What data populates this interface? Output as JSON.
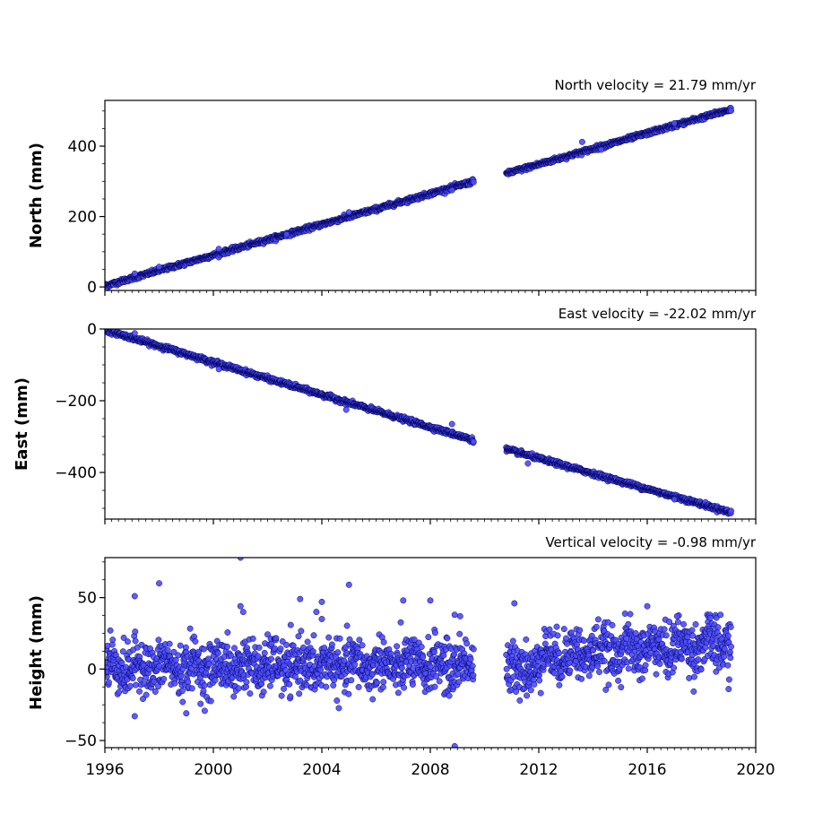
{
  "chart_data": [
    {
      "type": "scatter",
      "title": "North velocity = 21.79 mm/yr",
      "ylabel": "North (mm)",
      "xlim": [
        1996,
        2020
      ],
      "ylim": [
        -10,
        530
      ],
      "yticks": [
        0,
        200,
        400
      ],
      "velocity_mm_per_yr": 21.79,
      "segments": [
        {
          "x_start": 1996.0,
          "x_end": 2009.6,
          "y_start": 3,
          "y_end": 300
        },
        {
          "x_start": 2010.8,
          "x_end": 2019.1,
          "y_start": 322,
          "y_end": 505
        }
      ],
      "noise": 3,
      "outliers": [
        {
          "x": 1997.1,
          "y": 38
        },
        {
          "x": 1998.0,
          "y": 57
        },
        {
          "x": 2000.2,
          "y": 108
        },
        {
          "x": 2002.7,
          "y": 150
        },
        {
          "x": 2005.0,
          "y": 212
        },
        {
          "x": 2008.8,
          "y": 275
        },
        {
          "x": 2013.6,
          "y": 412
        },
        {
          "x": 2014.3,
          "y": 390
        },
        {
          "x": 2017.0,
          "y": 465
        }
      ]
    },
    {
      "type": "scatter",
      "title": "East velocity = -22.02 mm/yr",
      "ylabel": "East (mm)",
      "xlim": [
        1996,
        2020
      ],
      "ylim": [
        -530,
        0
      ],
      "yticks": [
        0,
        -200,
        -400
      ],
      "velocity_mm_per_yr": -22.02,
      "segments": [
        {
          "x_start": 1996.0,
          "x_end": 2009.6,
          "y_start": -2,
          "y_end": -310
        },
        {
          "x_start": 2010.8,
          "x_end": 2019.1,
          "y_start": -335,
          "y_end": -512
        }
      ],
      "noise": 3,
      "outliers": [
        {
          "x": 1997.1,
          "y": -12
        },
        {
          "x": 2000.2,
          "y": -112
        },
        {
          "x": 2004.9,
          "y": -225
        },
        {
          "x": 2008.8,
          "y": -265
        },
        {
          "x": 2011.6,
          "y": -375
        },
        {
          "x": 2017.0,
          "y": -475
        }
      ]
    },
    {
      "type": "scatter",
      "title": "Vertical velocity = -0.98 mm/yr",
      "ylabel": "Height (mm)",
      "xlim": [
        1996,
        2020
      ],
      "ylim": [
        -55,
        78
      ],
      "yticks": [
        -50,
        0,
        50
      ],
      "velocity_mm_per_yr": -0.98,
      "segments": [
        {
          "x_start": 1996.0,
          "x_end": 2009.6,
          "y_start": 1,
          "y_end": 3
        },
        {
          "x_start": 2010.8,
          "x_end": 2012.0,
          "y_start": 0,
          "y_end": 2
        },
        {
          "x_start": 2012.0,
          "x_end": 2019.1,
          "y_start": 9,
          "y_end": 18
        }
      ],
      "noise": 9,
      "outliers": [
        {
          "x": 1996.2,
          "y": 27
        },
        {
          "x": 1997.1,
          "y": 51
        },
        {
          "x": 1997.1,
          "y": -33
        },
        {
          "x": 1998.0,
          "y": 60
        },
        {
          "x": 1999.0,
          "y": -31
        },
        {
          "x": 2001.0,
          "y": 78
        },
        {
          "x": 2001.0,
          "y": 44
        },
        {
          "x": 2001.1,
          "y": 40
        },
        {
          "x": 2003.2,
          "y": 49
        },
        {
          "x": 2003.8,
          "y": 40
        },
        {
          "x": 2004.0,
          "y": 47
        },
        {
          "x": 2004.0,
          "y": 35
        },
        {
          "x": 2005.0,
          "y": 59
        },
        {
          "x": 2007.0,
          "y": 48
        },
        {
          "x": 2008.0,
          "y": 48
        },
        {
          "x": 2008.9,
          "y": 38
        },
        {
          "x": 2009.1,
          "y": 37
        },
        {
          "x": 2008.9,
          "y": -54
        },
        {
          "x": 2011.1,
          "y": 46
        },
        {
          "x": 2011.3,
          "y": -22
        },
        {
          "x": 2016.0,
          "y": 44
        },
        {
          "x": 2017.1,
          "y": 37
        },
        {
          "x": 2018.7,
          "y": 38
        },
        {
          "x": 2019.0,
          "y": -14
        }
      ]
    }
  ],
  "x_axis": {
    "ticks": [
      "1996",
      "2000",
      "2004",
      "2008",
      "2012",
      "2016",
      "2020"
    ],
    "minor_step_years": 0.25
  },
  "colors": {
    "marker_fill": "#4d4dff",
    "marker_edge": "#000055",
    "axes": "#000000",
    "background": "#ffffff"
  }
}
